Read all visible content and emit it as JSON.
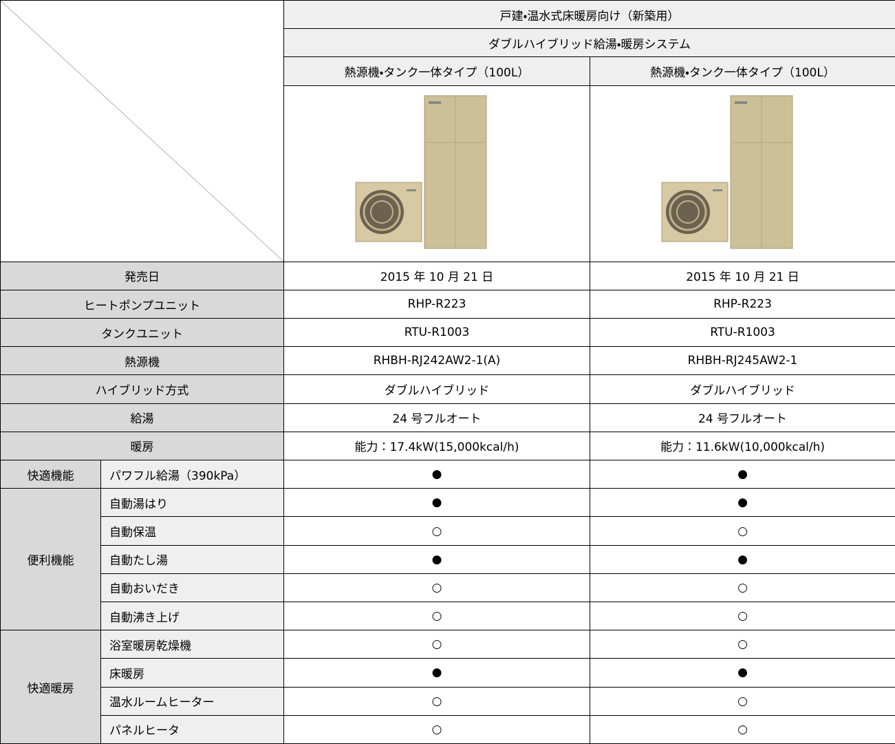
{
  "header": {
    "category": "戸建・温水式床暖房向け（新築用）",
    "system": "ダブルハイブリッド給湯・暖房システム",
    "models": [
      "熱源機・タンク一体タイプ（100L）",
      "熱源機・タンク一体タイプ（100L）"
    ]
  },
  "spec_rows": [
    {
      "label": "発売日",
      "values": [
        "2015 年 10 月 21 日",
        "2015 年 10 月 21 日"
      ]
    },
    {
      "label": "ヒートポンプユニット",
      "values": [
        "RHP-R223",
        "RHP-R223"
      ]
    },
    {
      "label": "タンクユニット",
      "values": [
        "RTU-R1003",
        "RTU-R1003"
      ]
    },
    {
      "label": "熱源機",
      "values": [
        "RHBH-RJ242AW2-1(A)",
        "RHBH-RJ245AW2-1"
      ]
    },
    {
      "label": "ハイブリッド方式",
      "values": [
        "ダブルハイブリッド",
        "ダブルハイブリッド"
      ]
    },
    {
      "label": "給湯",
      "values": [
        "24 号フルオート",
        "24 号フルオート"
      ]
    },
    {
      "label": "暖房",
      "values": [
        "能力：17.4kW(15,000kcal/h)",
        "能力：11.6kW(10,000kcal/h)"
      ]
    }
  ],
  "feature_groups": [
    {
      "label": "快適機能",
      "items": [
        {
          "label": "パワフル給湯（390kPa）",
          "values": [
            "●",
            "●"
          ]
        }
      ]
    },
    {
      "label": "便利機能",
      "items": [
        {
          "label": "自動湯はり",
          "values": [
            "●",
            "●"
          ]
        },
        {
          "label": "自動保温",
          "values": [
            "○",
            "○"
          ]
        },
        {
          "label": "自動たし湯",
          "values": [
            "●",
            "●"
          ]
        },
        {
          "label": "自動おいだき",
          "values": [
            "○",
            "○"
          ]
        },
        {
          "label": "自動沸き上げ",
          "values": [
            "○",
            "○"
          ]
        }
      ]
    },
    {
      "label": "快適暖房",
      "items": [
        {
          "label": "浴室暖房乾燥機",
          "values": [
            "○",
            "○"
          ]
        },
        {
          "label": "床暖房",
          "values": [
            "●",
            "●"
          ]
        },
        {
          "label": "温水ルームヒーター",
          "values": [
            "○",
            "○"
          ]
        },
        {
          "label": "パネルヒータ",
          "values": [
            "○",
            "○"
          ]
        }
      ]
    }
  ]
}
